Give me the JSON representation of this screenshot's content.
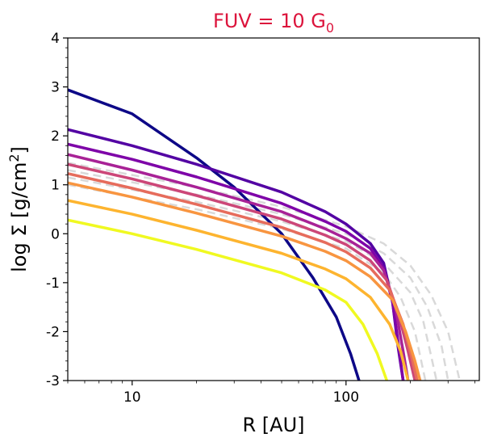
{
  "chart_data": {
    "type": "line",
    "title": {
      "main": "FUV = 10 G",
      "subscript": "0"
    },
    "title_color": "#dc143c",
    "xlabel": "R [AU]",
    "ylabel": {
      "prefix": "log Σ [g/cm",
      "superscript": "2",
      "suffix": "]"
    },
    "x_scale": "log",
    "xlim": [
      5,
      420
    ],
    "ylim": [
      -3,
      4
    ],
    "x_ticks": [
      {
        "value": 10,
        "label": "10"
      },
      {
        "value": 100,
        "label": "100"
      }
    ],
    "y_ticks": [
      {
        "value": 4,
        "label": "4"
      },
      {
        "value": 3,
        "label": "3"
      },
      {
        "value": 2,
        "label": "2"
      },
      {
        "value": 1,
        "label": "1"
      },
      {
        "value": 0,
        "label": "0"
      },
      {
        "value": -1,
        "label": "-1"
      },
      {
        "value": -2,
        "label": "-2"
      },
      {
        "value": -3,
        "label": "-3"
      }
    ],
    "grid": false,
    "legend": false,
    "reference_color": "#d9d9d9",
    "reference_series": [
      {
        "points": [
          [
            5,
            1.45
          ],
          [
            20,
            0.95
          ],
          [
            50,
            0.55
          ],
          [
            100,
            0.15
          ],
          [
            150,
            -0.2
          ],
          [
            200,
            -0.65
          ],
          [
            250,
            -1.25
          ],
          [
            300,
            -2.0
          ],
          [
            340,
            -3.0
          ]
        ]
      },
      {
        "points": [
          [
            5,
            1.3
          ],
          [
            20,
            0.8
          ],
          [
            50,
            0.4
          ],
          [
            100,
            0.0
          ],
          [
            150,
            -0.4
          ],
          [
            200,
            -0.9
          ],
          [
            240,
            -1.5
          ],
          [
            280,
            -2.3
          ],
          [
            300,
            -3.0
          ]
        ]
      },
      {
        "points": [
          [
            5,
            1.15
          ],
          [
            20,
            0.65
          ],
          [
            50,
            0.25
          ],
          [
            100,
            -0.15
          ],
          [
            150,
            -0.6
          ],
          [
            200,
            -1.2
          ],
          [
            230,
            -1.8
          ],
          [
            250,
            -2.5
          ],
          [
            265,
            -3.0
          ]
        ]
      },
      {
        "points": [
          [
            5,
            1.0
          ],
          [
            20,
            0.5
          ],
          [
            50,
            0.1
          ],
          [
            100,
            -0.3
          ],
          [
            150,
            -0.8
          ],
          [
            180,
            -1.3
          ],
          [
            210,
            -2.0
          ],
          [
            235,
            -3.0
          ]
        ]
      }
    ],
    "series": [
      {
        "color": "#0d0887",
        "points": [
          [
            5,
            2.94
          ],
          [
            10,
            2.45
          ],
          [
            20,
            1.55
          ],
          [
            30,
            0.95
          ],
          [
            50,
            0.0
          ],
          [
            70,
            -0.9
          ],
          [
            90,
            -1.7
          ],
          [
            105,
            -2.45
          ],
          [
            115,
            -3.0
          ]
        ]
      },
      {
        "color": "#5302a3",
        "points": [
          [
            5,
            2.13
          ],
          [
            10,
            1.8
          ],
          [
            20,
            1.42
          ],
          [
            50,
            0.85
          ],
          [
            80,
            0.45
          ],
          [
            100,
            0.2
          ],
          [
            130,
            -0.2
          ],
          [
            150,
            -0.6
          ],
          [
            165,
            -1.4
          ],
          [
            175,
            -2.3
          ],
          [
            185,
            -3.0
          ]
        ]
      },
      {
        "color": "#7e03a8",
        "points": [
          [
            5,
            1.83
          ],
          [
            10,
            1.52
          ],
          [
            20,
            1.16
          ],
          [
            50,
            0.62
          ],
          [
            80,
            0.25
          ],
          [
            100,
            0.05
          ],
          [
            130,
            -0.3
          ],
          [
            150,
            -0.7
          ],
          [
            165,
            -1.4
          ],
          [
            175,
            -2.2
          ],
          [
            185,
            -3.0
          ]
        ]
      },
      {
        "color": "#a82296",
        "points": [
          [
            5,
            1.62
          ],
          [
            10,
            1.3
          ],
          [
            20,
            0.95
          ],
          [
            50,
            0.45
          ],
          [
            80,
            0.1
          ],
          [
            100,
            -0.1
          ],
          [
            130,
            -0.4
          ],
          [
            150,
            -0.75
          ],
          [
            170,
            -1.5
          ],
          [
            185,
            -2.4
          ],
          [
            195,
            -3.0
          ]
        ]
      },
      {
        "color": "#cc4778",
        "points": [
          [
            5,
            1.42
          ],
          [
            10,
            1.12
          ],
          [
            20,
            0.78
          ],
          [
            50,
            0.3
          ],
          [
            80,
            -0.03
          ],
          [
            100,
            -0.22
          ],
          [
            130,
            -0.55
          ],
          [
            155,
            -0.95
          ],
          [
            175,
            -1.6
          ],
          [
            195,
            -2.4
          ],
          [
            210,
            -3.0
          ]
        ]
      },
      {
        "color": "#e66c5c",
        "points": [
          [
            5,
            1.23
          ],
          [
            10,
            0.93
          ],
          [
            20,
            0.6
          ],
          [
            50,
            0.13
          ],
          [
            80,
            -0.18
          ],
          [
            100,
            -0.37
          ],
          [
            130,
            -0.7
          ],
          [
            160,
            -1.15
          ],
          [
            185,
            -1.85
          ],
          [
            205,
            -2.6
          ],
          [
            215,
            -3.0
          ]
        ]
      },
      {
        "color": "#f89540",
        "points": [
          [
            5,
            1.04
          ],
          [
            10,
            0.75
          ],
          [
            20,
            0.42
          ],
          [
            50,
            -0.05
          ],
          [
            80,
            -0.36
          ],
          [
            100,
            -0.55
          ],
          [
            130,
            -0.88
          ],
          [
            165,
            -1.35
          ],
          [
            190,
            -2.0
          ],
          [
            210,
            -2.6
          ],
          [
            222,
            -3.0
          ]
        ]
      },
      {
        "color": "#fdb42f",
        "points": [
          [
            5,
            0.68
          ],
          [
            10,
            0.4
          ],
          [
            20,
            0.07
          ],
          [
            50,
            -0.4
          ],
          [
            80,
            -0.72
          ],
          [
            100,
            -0.92
          ],
          [
            130,
            -1.3
          ],
          [
            160,
            -1.85
          ],
          [
            180,
            -2.4
          ],
          [
            195,
            -3.0
          ]
        ]
      },
      {
        "color": "#f0f921",
        "points": [
          [
            5,
            0.28
          ],
          [
            10,
            0.0
          ],
          [
            20,
            -0.32
          ],
          [
            50,
            -0.8
          ],
          [
            80,
            -1.15
          ],
          [
            100,
            -1.4
          ],
          [
            120,
            -1.85
          ],
          [
            140,
            -2.45
          ],
          [
            155,
            -3.0
          ]
        ]
      }
    ]
  }
}
